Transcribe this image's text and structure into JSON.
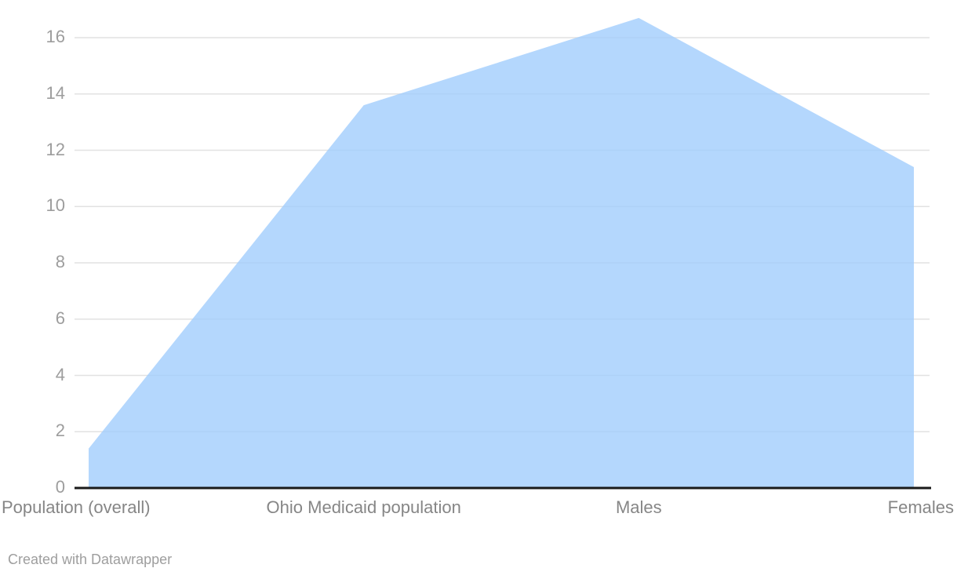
{
  "chart_data": {
    "type": "area",
    "categories": [
      "Population (overall)",
      "Ohio Medicaid population",
      "Males",
      "Females"
    ],
    "series": [
      {
        "name": "value",
        "values": [
          1.4,
          13.6,
          16.7,
          11.4
        ]
      }
    ],
    "values": [
      1.4,
      13.6,
      16.7,
      11.4
    ],
    "title": "",
    "xlabel": "",
    "ylabel": "",
    "ylim": [
      0,
      17.3
    ],
    "yticks": [
      0,
      2,
      4,
      6,
      8,
      10,
      12,
      14,
      16
    ],
    "grid": true,
    "legend": false,
    "colors": {
      "area_fill": "#b4d7fd",
      "area_fill_rgba": "rgba(161,205,253,0.8)",
      "gridline": "#e2e2e2",
      "baseline": "#1a1a1a",
      "x_tick_label": "#868686",
      "y_tick_label": "#9d9d9d",
      "credit_text": "#9e9e9e"
    }
  },
  "footer": {
    "credit": "Created with Datawrapper"
  }
}
